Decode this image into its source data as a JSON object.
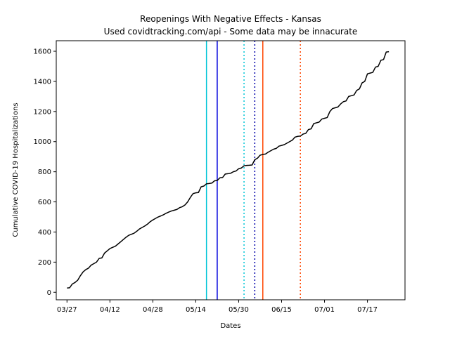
{
  "chart_data": {
    "type": "line",
    "title": "Reopenings With Negative Effects - Kansas",
    "subtitle": "Used covidtracking.com/api - Some data may be innacurate",
    "xlabel": "Dates",
    "ylabel": "Cumulative COVID-19 Hospitalizations",
    "x_axis": {
      "type": "date",
      "range": [
        "2020-03-23",
        "2020-07-31"
      ],
      "ticks": [
        "2020-03-27",
        "2020-04-12",
        "2020-04-28",
        "2020-05-14",
        "2020-05-30",
        "2020-06-15",
        "2020-07-01",
        "2020-07-17"
      ],
      "tick_labels": [
        "03/27",
        "04/12",
        "04/28",
        "05/14",
        "05/30",
        "06/15",
        "07/01",
        "07/17"
      ]
    },
    "y_axis": {
      "range": [
        -50,
        1670
      ],
      "ticks": [
        0,
        200,
        400,
        600,
        800,
        1000,
        1200,
        1400,
        1600
      ],
      "tick_labels": [
        "0",
        "200",
        "400",
        "600",
        "800",
        "1000",
        "1200",
        "1400",
        "1600"
      ]
    },
    "grid": false,
    "series": [
      {
        "color": "#000000",
        "points": [
          [
            "2020-03-27",
            28
          ],
          [
            "2020-03-28",
            30
          ],
          [
            "2020-03-29",
            55
          ],
          [
            "2020-03-30",
            65
          ],
          [
            "2020-03-31",
            80
          ],
          [
            "2020-04-01",
            110
          ],
          [
            "2020-04-02",
            135
          ],
          [
            "2020-04-03",
            150
          ],
          [
            "2020-04-04",
            160
          ],
          [
            "2020-04-05",
            180
          ],
          [
            "2020-04-06",
            190
          ],
          [
            "2020-04-07",
            200
          ],
          [
            "2020-04-08",
            225
          ],
          [
            "2020-04-09",
            228
          ],
          [
            "2020-04-10",
            260
          ],
          [
            "2020-04-11",
            275
          ],
          [
            "2020-04-12",
            290
          ],
          [
            "2020-04-13",
            298
          ],
          [
            "2020-04-14",
            305
          ],
          [
            "2020-04-15",
            320
          ],
          [
            "2020-04-16",
            335
          ],
          [
            "2020-04-17",
            350
          ],
          [
            "2020-04-18",
            365
          ],
          [
            "2020-04-19",
            378
          ],
          [
            "2020-04-20",
            385
          ],
          [
            "2020-04-21",
            392
          ],
          [
            "2020-04-22",
            405
          ],
          [
            "2020-04-23",
            420
          ],
          [
            "2020-04-24",
            430
          ],
          [
            "2020-04-25",
            440
          ],
          [
            "2020-04-26",
            452
          ],
          [
            "2020-04-27",
            468
          ],
          [
            "2020-04-28",
            480
          ],
          [
            "2020-04-29",
            490
          ],
          [
            "2020-04-30",
            500
          ],
          [
            "2020-05-01",
            507
          ],
          [
            "2020-05-02",
            515
          ],
          [
            "2020-05-03",
            525
          ],
          [
            "2020-05-04",
            533
          ],
          [
            "2020-05-05",
            540
          ],
          [
            "2020-05-06",
            545
          ],
          [
            "2020-05-07",
            550
          ],
          [
            "2020-05-08",
            562
          ],
          [
            "2020-05-09",
            568
          ],
          [
            "2020-05-10",
            580
          ],
          [
            "2020-05-11",
            600
          ],
          [
            "2020-05-12",
            630
          ],
          [
            "2020-05-13",
            655
          ],
          [
            "2020-05-14",
            660
          ],
          [
            "2020-05-15",
            662
          ],
          [
            "2020-05-16",
            700
          ],
          [
            "2020-05-17",
            705
          ],
          [
            "2020-05-18",
            720
          ],
          [
            "2020-05-19",
            722
          ],
          [
            "2020-05-20",
            725
          ],
          [
            "2020-05-21",
            740
          ],
          [
            "2020-05-22",
            742
          ],
          [
            "2020-05-23",
            760
          ],
          [
            "2020-05-24",
            762
          ],
          [
            "2020-05-25",
            785
          ],
          [
            "2020-05-26",
            787
          ],
          [
            "2020-05-27",
            790
          ],
          [
            "2020-05-28",
            800
          ],
          [
            "2020-05-29",
            805
          ],
          [
            "2020-05-30",
            820
          ],
          [
            "2020-05-31",
            825
          ],
          [
            "2020-06-01",
            840
          ],
          [
            "2020-06-02",
            842
          ],
          [
            "2020-06-03",
            843
          ],
          [
            "2020-06-04",
            845
          ],
          [
            "2020-06-05",
            880
          ],
          [
            "2020-06-06",
            890
          ],
          [
            "2020-06-07",
            910
          ],
          [
            "2020-06-08",
            915
          ],
          [
            "2020-06-09",
            918
          ],
          [
            "2020-06-10",
            930
          ],
          [
            "2020-06-11",
            940
          ],
          [
            "2020-06-12",
            950
          ],
          [
            "2020-06-13",
            955
          ],
          [
            "2020-06-14",
            970
          ],
          [
            "2020-06-15",
            975
          ],
          [
            "2020-06-16",
            980
          ],
          [
            "2020-06-17",
            990
          ],
          [
            "2020-06-18",
            1000
          ],
          [
            "2020-06-19",
            1010
          ],
          [
            "2020-06-20",
            1030
          ],
          [
            "2020-06-21",
            1035
          ],
          [
            "2020-06-22",
            1037
          ],
          [
            "2020-06-23",
            1050
          ],
          [
            "2020-06-24",
            1055
          ],
          [
            "2020-06-25",
            1080
          ],
          [
            "2020-06-26",
            1085
          ],
          [
            "2020-06-27",
            1120
          ],
          [
            "2020-06-28",
            1125
          ],
          [
            "2020-06-29",
            1130
          ],
          [
            "2020-06-30",
            1150
          ],
          [
            "2020-07-01",
            1155
          ],
          [
            "2020-07-02",
            1160
          ],
          [
            "2020-07-03",
            1200
          ],
          [
            "2020-07-04",
            1220
          ],
          [
            "2020-07-05",
            1225
          ],
          [
            "2020-07-06",
            1230
          ],
          [
            "2020-07-07",
            1250
          ],
          [
            "2020-07-08",
            1265
          ],
          [
            "2020-07-09",
            1270
          ],
          [
            "2020-07-10",
            1300
          ],
          [
            "2020-07-11",
            1305
          ],
          [
            "2020-07-12",
            1310
          ],
          [
            "2020-07-13",
            1340
          ],
          [
            "2020-07-14",
            1350
          ],
          [
            "2020-07-15",
            1390
          ],
          [
            "2020-07-16",
            1400
          ],
          [
            "2020-07-17",
            1450
          ],
          [
            "2020-07-18",
            1455
          ],
          [
            "2020-07-19",
            1460
          ],
          [
            "2020-07-20",
            1495
          ],
          [
            "2020-07-21",
            1500
          ],
          [
            "2020-07-22",
            1540
          ],
          [
            "2020-07-23",
            1545
          ],
          [
            "2020-07-24",
            1595
          ],
          [
            "2020-07-25",
            1597
          ]
        ]
      }
    ],
    "vertical_lines": [
      {
        "date": "2020-05-18",
        "color": "#00c5d6",
        "style": "solid"
      },
      {
        "date": "2020-05-22",
        "color": "#0000dd",
        "style": "solid"
      },
      {
        "date": "2020-06-01",
        "color": "#00c5d6",
        "style": "dotted"
      },
      {
        "date": "2020-06-05",
        "color": "#0000aa",
        "style": "dotted"
      },
      {
        "date": "2020-06-08",
        "color": "#ff4500",
        "style": "solid"
      },
      {
        "date": "2020-06-22",
        "color": "#ff4500",
        "style": "dotted"
      }
    ]
  }
}
